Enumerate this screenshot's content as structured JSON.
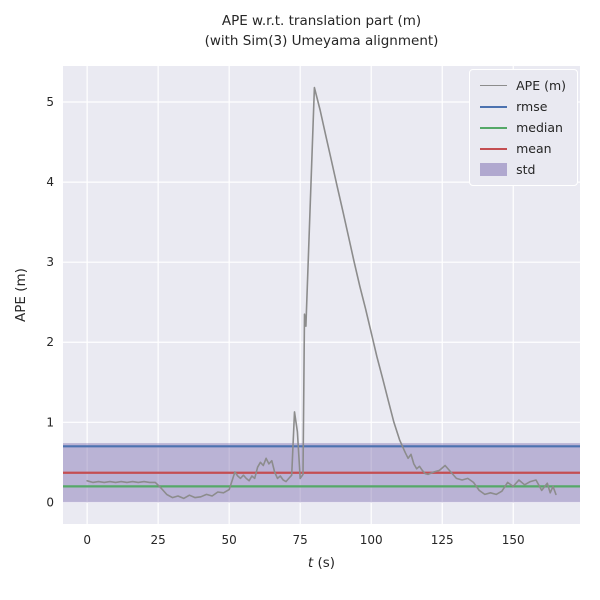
{
  "chart_data": {
    "type": "line",
    "title": "APE w.r.t. translation part (m)",
    "subtitle": "(with Sim(3) Umeyama alignment)",
    "xlabel_var": "t",
    "xlabel_unit": " (s)",
    "ylabel": "APE (m)",
    "xlim": [
      -8.5,
      173.5
    ],
    "ylim": [
      -0.27,
      5.45
    ],
    "xticks": [
      0,
      25,
      50,
      75,
      100,
      125,
      150
    ],
    "yticks": [
      0,
      1,
      2,
      3,
      4,
      5
    ],
    "grid": true,
    "legend_position": "upper right",
    "series": [
      {
        "name": "APE (m)",
        "color": "#8c8c8c",
        "line_width": 1.6,
        "x": [
          0,
          2,
          4,
          6,
          8,
          10,
          12,
          14,
          16,
          18,
          20,
          22,
          24,
          26,
          28,
          30,
          32,
          34,
          36,
          38,
          40,
          42,
          44,
          46,
          48,
          50,
          52,
          53,
          54,
          55,
          56,
          57,
          58,
          59,
          60,
          61,
          62,
          63,
          64,
          65,
          66,
          67,
          68,
          69,
          70,
          71,
          72,
          73,
          74,
          75,
          76,
          76.5,
          77,
          80,
          82,
          84,
          86,
          88,
          90,
          92,
          94,
          96,
          98,
          100,
          102,
          104,
          106,
          108,
          110,
          112,
          113,
          114,
          115,
          116,
          117,
          118,
          119,
          120,
          122,
          124,
          126,
          128,
          130,
          132,
          134,
          136,
          138,
          140,
          142,
          144,
          146,
          148,
          150,
          152,
          154,
          156,
          158,
          160,
          162,
          163,
          164,
          165
        ],
        "y": [
          0.27,
          0.25,
          0.26,
          0.25,
          0.26,
          0.25,
          0.26,
          0.25,
          0.26,
          0.25,
          0.26,
          0.25,
          0.25,
          0.18,
          0.1,
          0.06,
          0.08,
          0.05,
          0.09,
          0.06,
          0.07,
          0.1,
          0.08,
          0.13,
          0.12,
          0.16,
          0.38,
          0.33,
          0.3,
          0.34,
          0.3,
          0.27,
          0.33,
          0.3,
          0.44,
          0.5,
          0.46,
          0.55,
          0.48,
          0.52,
          0.38,
          0.3,
          0.33,
          0.28,
          0.26,
          0.3,
          0.34,
          1.13,
          0.88,
          0.3,
          0.35,
          2.35,
          2.2,
          5.18,
          4.9,
          4.58,
          4.27,
          3.95,
          3.64,
          3.32,
          3.0,
          2.7,
          2.42,
          2.12,
          1.82,
          1.55,
          1.27,
          1.0,
          0.78,
          0.62,
          0.55,
          0.6,
          0.48,
          0.42,
          0.45,
          0.4,
          0.36,
          0.35,
          0.38,
          0.4,
          0.46,
          0.38,
          0.3,
          0.28,
          0.3,
          0.25,
          0.15,
          0.1,
          0.12,
          0.1,
          0.14,
          0.25,
          0.2,
          0.28,
          0.22,
          0.26,
          0.28,
          0.15,
          0.24,
          0.12,
          0.2,
          0.1
        ]
      }
    ],
    "hlines": [
      {
        "name": "rmse",
        "value": 0.7,
        "color": "#4c72b0",
        "line_width": 2.2
      },
      {
        "name": "median",
        "value": 0.2,
        "color": "#55a868",
        "line_width": 2.2
      },
      {
        "name": "mean",
        "value": 0.37,
        "color": "#c44e52",
        "line_width": 2.2
      }
    ],
    "band": {
      "name": "std",
      "ymin": 0.0,
      "ymax": 0.74,
      "color": "#8172b2",
      "alpha": 0.45
    }
  },
  "legend": {
    "items": [
      {
        "label": "APE (m)",
        "color": "#8c8c8c",
        "swatch": "line",
        "weight": 1.6
      },
      {
        "label": "rmse",
        "color": "#4c72b0",
        "swatch": "line",
        "weight": 2.5
      },
      {
        "label": "median",
        "color": "#55a868",
        "swatch": "line",
        "weight": 2.5
      },
      {
        "label": "mean",
        "color": "#c44e52",
        "swatch": "line",
        "weight": 2.5
      },
      {
        "label": "std",
        "color": "#8172b2",
        "swatch": "patch",
        "alpha": 0.55
      }
    ]
  },
  "colors": {
    "axes_background": "#eaeaf2",
    "grid": "#ffffff",
    "text": "#262626"
  }
}
